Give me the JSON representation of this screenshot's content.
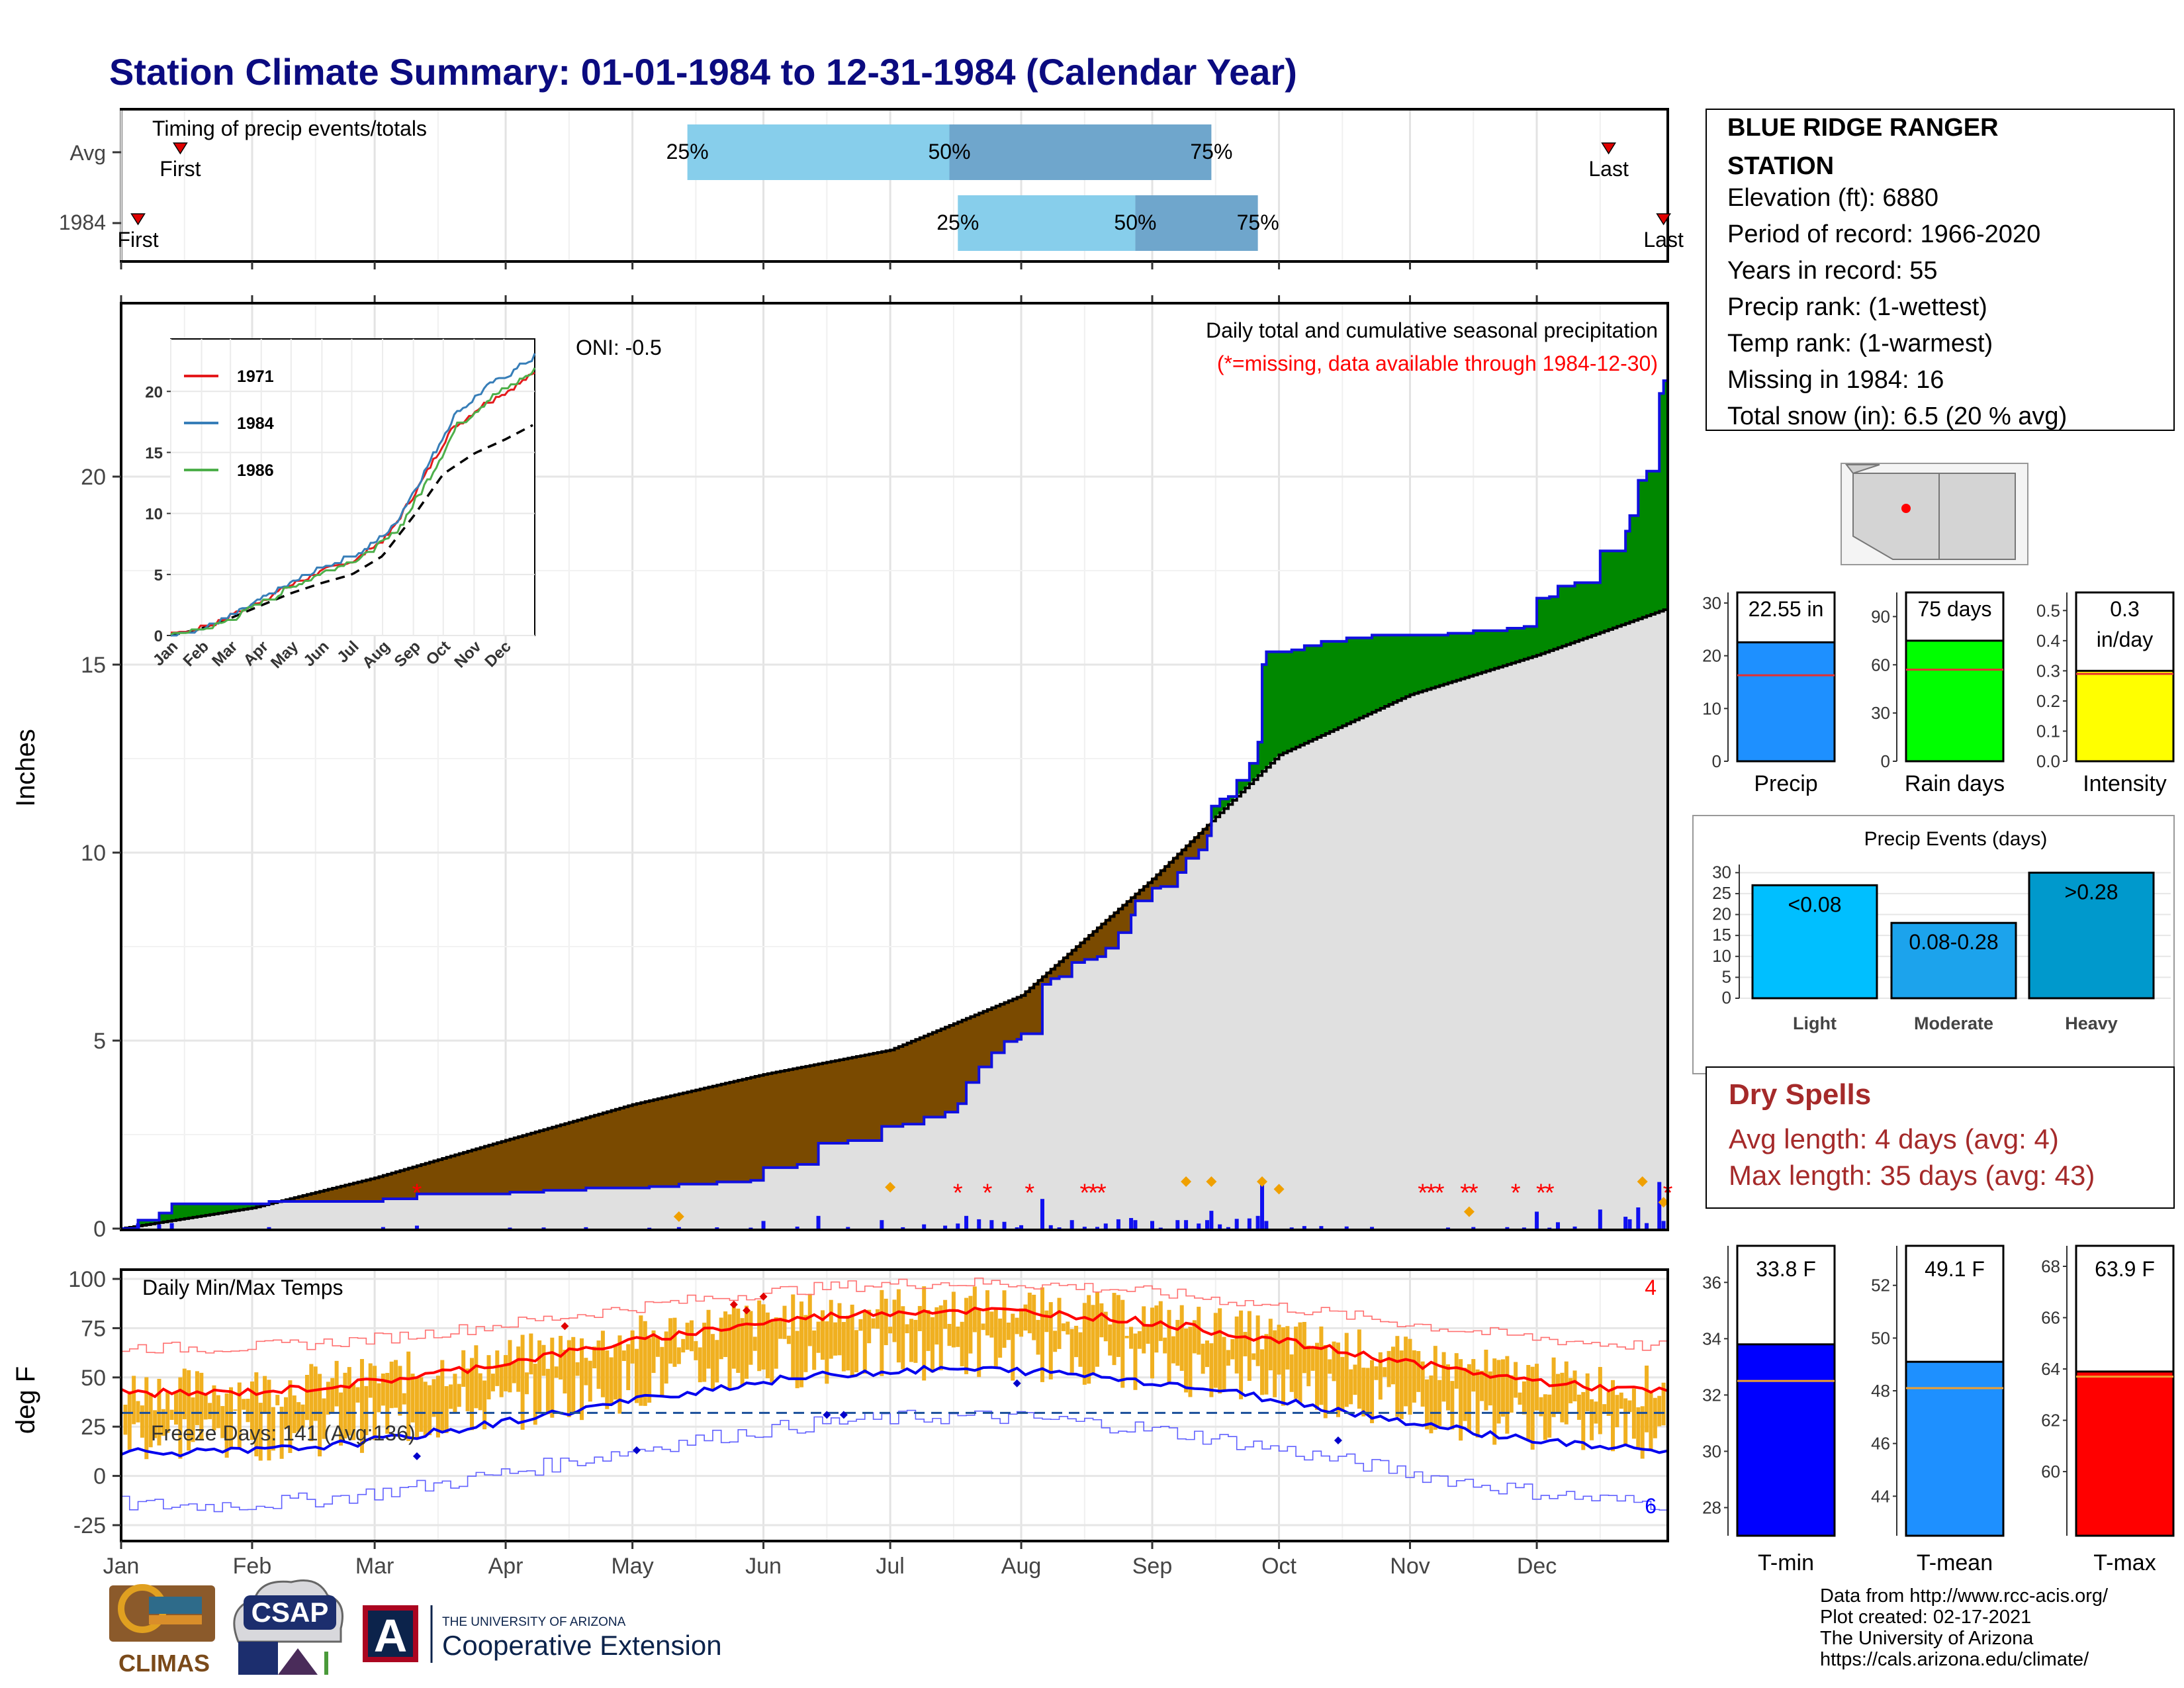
{
  "title": "Station Climate Summary: 01-01-1984 to 12-31-1984 (Calendar Year)",
  "colors": {
    "title": "#0b0b80",
    "brown": "#7a4a00",
    "green": "#008800",
    "cum_gray": "#e0e0e0",
    "blue": "#1010f0",
    "red": "#ff0000",
    "orange": "#f0a000",
    "temp_bar": "#f0b020",
    "light_blue": "#87ceeb",
    "mid_blue": "#6fa6cc",
    "dry_red": "#a52a2a"
  },
  "timing": {
    "label": "Timing of precip events/totals",
    "rows": [
      {
        "name": "Avg",
        "first_label": "First",
        "last_label": "Last",
        "first_day": 14,
        "last_day": 352,
        "q25": 134,
        "q50": 196,
        "q75": 258,
        "q25_label": "25%",
        "q50_label": "50%",
        "q75_label": "75%"
      },
      {
        "name": "1984",
        "first_label": "First",
        "last_label": "Last",
        "first_day": 4,
        "last_day": 365,
        "q25": 198,
        "q50": 240,
        "q75": 269,
        "q25_label": "25%",
        "q50_label": "50%",
        "q75_label": "75%"
      }
    ]
  },
  "main": {
    "ylabel": "Inches",
    "oni": "ONI: -0.5",
    "caption1": "Daily total and cumulative seasonal precipitation",
    "caption2": "(*=missing, data available through 1984-12-30)",
    "yticks": [
      0,
      5,
      10,
      15,
      20
    ]
  },
  "months": [
    "Jan",
    "Feb",
    "Mar",
    "Apr",
    "May",
    "Jun",
    "Jul",
    "Aug",
    "Sep",
    "Oct",
    "Nov",
    "Dec"
  ],
  "inset": {
    "legend": [
      "1971",
      "1984",
      "1986"
    ],
    "legend_colors": [
      "#e41a1c",
      "#377eb8",
      "#4daf4a"
    ],
    "yticks": [
      0,
      5,
      10,
      15,
      20
    ]
  },
  "temps": {
    "label": "Daily Min/Max Temps",
    "ylabel": "deg F",
    "freeze": "Freeze Days: 141 (Avg:136)",
    "count_max": "4",
    "count_min": "6",
    "yticks": [
      -25,
      0,
      25,
      50,
      75,
      100
    ]
  },
  "station": {
    "name_line1": "BLUE RIDGE RANGER",
    "name_line2": "STATION",
    "lines": [
      "Elevation (ft): 6880",
      "Period of record: 1966-2020",
      "Years in record: 55",
      "Precip rank:  (1-wettest)",
      "Temp rank:  (1-warmest)",
      "Missing in 1984: 16",
      "Total snow (in): 6.5 (20 % avg)"
    ]
  },
  "summary_bars": [
    {
      "name": "Precip",
      "value_label": "22.55 in",
      "value": 22.55,
      "avg": 16.3,
      "ymax": 32,
      "yticks": [
        0,
        10,
        20,
        30
      ],
      "color": "#1e90ff"
    },
    {
      "name": "Rain days",
      "value_label": "75 days",
      "value": 75,
      "avg": 57,
      "ymax": 105,
      "yticks": [
        0,
        30,
        60,
        90
      ],
      "color": "#00ff00"
    },
    {
      "name": "Intensity",
      "value_label": "0.3 in/day",
      "value": 0.3,
      "avg": 0.29,
      "ymax": 0.56,
      "yticks": [
        0.0,
        0.1,
        0.2,
        0.3,
        0.4,
        0.5
      ],
      "color": "#ffff00"
    }
  ],
  "events": {
    "title": "Precip Events (days)",
    "yticks": [
      0,
      5,
      10,
      15,
      20,
      25,
      30
    ],
    "bars": [
      {
        "name": "Light",
        "label": "<0.08",
        "value": 27,
        "color": "#00bfff"
      },
      {
        "name": "Moderate",
        "label": "0.08-0.28",
        "value": 18,
        "color": "#1ca3ec"
      },
      {
        "name": "Heavy",
        "label": ">0.28",
        "value": 30,
        "color": "#0099cc"
      }
    ]
  },
  "dry": {
    "title": "Dry Spells",
    "avg": "Avg length: 4 days (avg: 4)",
    "max": "Max length: 35 days (avg: 43)"
  },
  "temp_bars": [
    {
      "name": "T-min",
      "value_label": "33.8 F",
      "value": 33.8,
      "avg": 32.5,
      "ymin": 27,
      "ymax": 37.3,
      "yticks": [
        28,
        30,
        32,
        34,
        36
      ],
      "color": "#0000ff"
    },
    {
      "name": "T-mean",
      "value_label": "49.1 F",
      "value": 49.1,
      "avg": 48.1,
      "ymin": 42.5,
      "ymax": 53.5,
      "yticks": [
        44,
        46,
        48,
        50,
        52
      ],
      "color": "#1e90ff"
    },
    {
      "name": "T-max",
      "value_label": "63.9 F",
      "value": 63.9,
      "avg": 63.7,
      "ymin": 57.5,
      "ymax": 68.8,
      "yticks": [
        60,
        62,
        64,
        66,
        68
      ],
      "color": "#ff0000"
    }
  ],
  "credits": [
    "Data from http://www.rcc-acis.org/",
    "Plot created: 02-17-2021",
    "The University of Arizona",
    "https://cals.arizona.edu/climate/"
  ],
  "logos": {
    "climas": "CLIMAS",
    "csap": "CSAP",
    "ua_small": "THE UNIVERSITY OF ARIZONA",
    "ua_big": "Cooperative Extension",
    "ua_letter": "A"
  }
}
